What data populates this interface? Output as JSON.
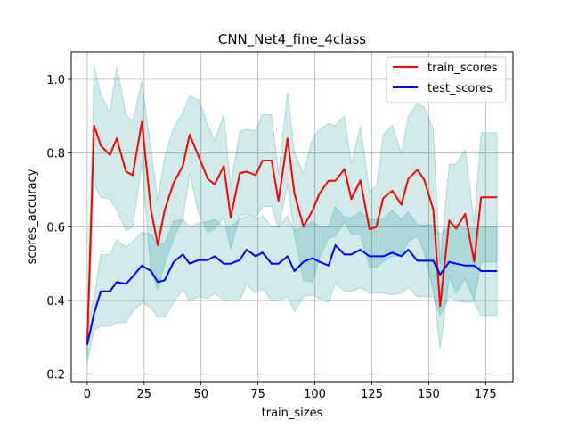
{
  "chart_data": {
    "type": "line",
    "title": "CNN_Net4_fine_4class",
    "xlabel": "train_sizes",
    "ylabel": "scores_accuracy",
    "xlim": [
      -7,
      187
    ],
    "ylim": [
      0.18,
      1.075
    ],
    "xticks": [
      0,
      25,
      50,
      75,
      100,
      125,
      150,
      175
    ],
    "yticks": [
      0.2,
      0.4,
      0.6,
      0.8,
      1.0
    ],
    "xtick_labels": [
      "0",
      "25",
      "50",
      "75",
      "100",
      "125",
      "150",
      "175"
    ],
    "ytick_labels": [
      "0.2",
      "0.4",
      "0.6",
      "0.8",
      "1.0"
    ],
    "grid": true,
    "legend_position": "top-right",
    "x": [
      0,
      3,
      6,
      10,
      13,
      17,
      20,
      24,
      28,
      31,
      34,
      38,
      42,
      45,
      49,
      53,
      56,
      60,
      63,
      67,
      70,
      74,
      77,
      81,
      84,
      88,
      91,
      95,
      99,
      102,
      106,
      109,
      113,
      116,
      120,
      124,
      127,
      130,
      134,
      138,
      141,
      145,
      148,
      152,
      155,
      159,
      162,
      166,
      170,
      173,
      177,
      180
    ],
    "series": [
      {
        "name": "train_scores",
        "color": "#ff0000",
        "values": [
          0.28,
          0.875,
          0.82,
          0.795,
          0.84,
          0.75,
          0.74,
          0.885,
          0.645,
          0.55,
          0.645,
          0.72,
          0.765,
          0.85,
          0.79,
          0.73,
          0.715,
          0.765,
          0.625,
          0.745,
          0.75,
          0.74,
          0.78,
          0.78,
          0.67,
          0.84,
          0.69,
          0.6,
          0.645,
          0.69,
          0.725,
          0.725,
          0.757,
          0.675,
          0.726,
          0.593,
          0.6,
          0.678,
          0.698,
          0.66,
          0.73,
          0.755,
          0.728,
          0.647,
          0.385,
          0.617,
          0.595,
          0.635,
          0.505,
          0.68,
          0.68,
          0.68
        ],
        "upper": [
          0.31,
          1.035,
          0.96,
          0.91,
          1.035,
          0.905,
          0.885,
          0.995,
          0.81,
          0.67,
          0.79,
          0.87,
          0.91,
          0.955,
          0.945,
          0.875,
          0.835,
          0.905,
          0.71,
          0.86,
          0.865,
          0.86,
          0.905,
          0.905,
          0.745,
          0.965,
          0.8,
          0.745,
          0.84,
          0.865,
          0.88,
          0.875,
          0.9,
          0.77,
          0.875,
          0.695,
          0.71,
          0.85,
          0.875,
          0.8,
          0.9,
          0.935,
          0.925,
          0.865,
          0.5,
          0.77,
          0.77,
          0.81,
          0.61,
          0.855,
          0.855,
          0.855
        ],
        "lower": [
          0.25,
          0.715,
          0.68,
          0.675,
          0.645,
          0.59,
          0.6,
          0.77,
          0.48,
          0.43,
          0.5,
          0.57,
          0.62,
          0.745,
          0.635,
          0.585,
          0.595,
          0.625,
          0.54,
          0.63,
          0.635,
          0.625,
          0.655,
          0.655,
          0.595,
          0.715,
          0.58,
          0.455,
          0.45,
          0.515,
          0.57,
          0.575,
          0.614,
          0.58,
          0.577,
          0.491,
          0.49,
          0.506,
          0.521,
          0.52,
          0.56,
          0.575,
          0.531,
          0.429,
          0.27,
          0.464,
          0.42,
          0.46,
          0.4,
          0.505,
          0.505,
          0.505
        ]
      },
      {
        "name": "test_scores",
        "color": "#0000ff",
        "values": [
          0.28,
          0.365,
          0.425,
          0.425,
          0.45,
          0.445,
          0.465,
          0.495,
          0.48,
          0.45,
          0.455,
          0.505,
          0.525,
          0.5,
          0.51,
          0.51,
          0.52,
          0.5,
          0.5,
          0.51,
          0.538,
          0.52,
          0.53,
          0.5,
          0.5,
          0.52,
          0.48,
          0.505,
          0.515,
          0.505,
          0.495,
          0.55,
          0.525,
          0.525,
          0.538,
          0.52,
          0.52,
          0.52,
          0.53,
          0.52,
          0.538,
          0.508,
          0.508,
          0.508,
          0.47,
          0.505,
          0.5,
          0.495,
          0.495,
          0.48,
          0.48,
          0.48
        ],
        "upper": [
          0.33,
          0.41,
          0.525,
          0.525,
          0.565,
          0.545,
          0.56,
          0.585,
          0.58,
          0.55,
          0.555,
          0.615,
          0.62,
          0.6,
          0.61,
          0.615,
          0.62,
          0.6,
          0.6,
          0.62,
          0.63,
          0.62,
          0.63,
          0.6,
          0.6,
          0.63,
          0.59,
          0.6,
          0.615,
          0.6,
          0.6,
          0.655,
          0.625,
          0.625,
          0.64,
          0.62,
          0.62,
          0.62,
          0.645,
          0.62,
          0.64,
          0.605,
          0.605,
          0.605,
          0.58,
          0.6,
          0.6,
          0.595,
          0.595,
          0.6,
          0.6,
          0.6
        ],
        "lower": [
          0.23,
          0.32,
          0.33,
          0.33,
          0.34,
          0.34,
          0.37,
          0.395,
          0.38,
          0.355,
          0.355,
          0.395,
          0.43,
          0.4,
          0.41,
          0.405,
          0.42,
          0.4,
          0.4,
          0.4,
          0.445,
          0.42,
          0.43,
          0.4,
          0.4,
          0.41,
          0.37,
          0.41,
          0.415,
          0.405,
          0.395,
          0.445,
          0.425,
          0.425,
          0.435,
          0.42,
          0.42,
          0.42,
          0.415,
          0.42,
          0.435,
          0.41,
          0.41,
          0.41,
          0.36,
          0.41,
          0.4,
          0.395,
          0.395,
          0.36,
          0.36,
          0.36
        ]
      }
    ],
    "band_color": "#008b8b",
    "band_opacity": 0.18
  }
}
